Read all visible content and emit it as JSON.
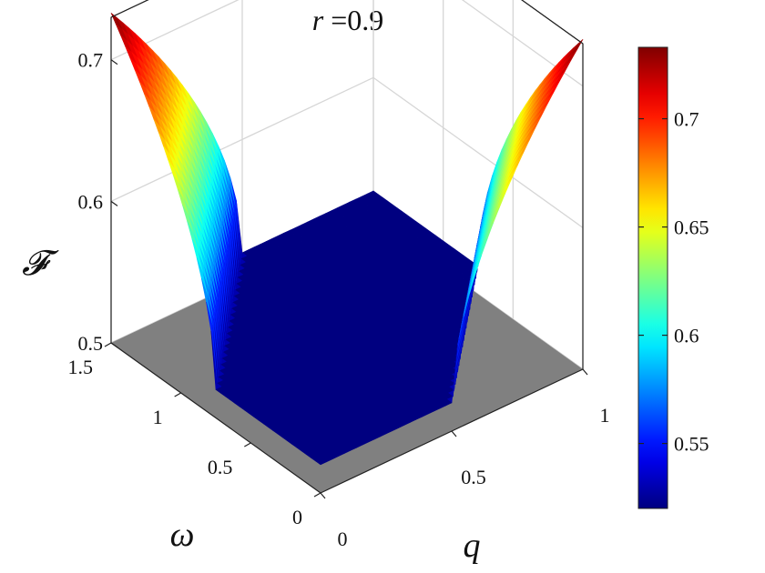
{
  "chart_data": {
    "type": "surface3d",
    "title": "r =0.9",
    "title_var": "r",
    "title_rest": " =0.9",
    "xlabel": "q",
    "ylabel": "ω",
    "zlabel": "𝓕",
    "xlim": [
      0,
      1
    ],
    "ylim": [
      0,
      1.5
    ],
    "zlim": [
      0.5,
      0.73
    ],
    "x_ticks": [
      "0",
      "0.5",
      "1"
    ],
    "y_ticks": [
      "0",
      "0.5",
      "1",
      "1.5"
    ],
    "z_ticks": [
      "0.5",
      "0.6",
      "0.7"
    ],
    "colormap": "jet",
    "clim": [
      0.52,
      0.733
    ],
    "colorbar_ticks": [
      "0.55",
      "0.6",
      "0.65",
      "0.7"
    ],
    "surface_corner_values": {
      "q0_w0": 0.52,
      "q1_w0": 0.733,
      "q0_w1.5": 0.733,
      "q1_w1.5": 0.52
    },
    "floor_plane_z": 0.5,
    "floor_color": "#808080",
    "grid": true
  }
}
